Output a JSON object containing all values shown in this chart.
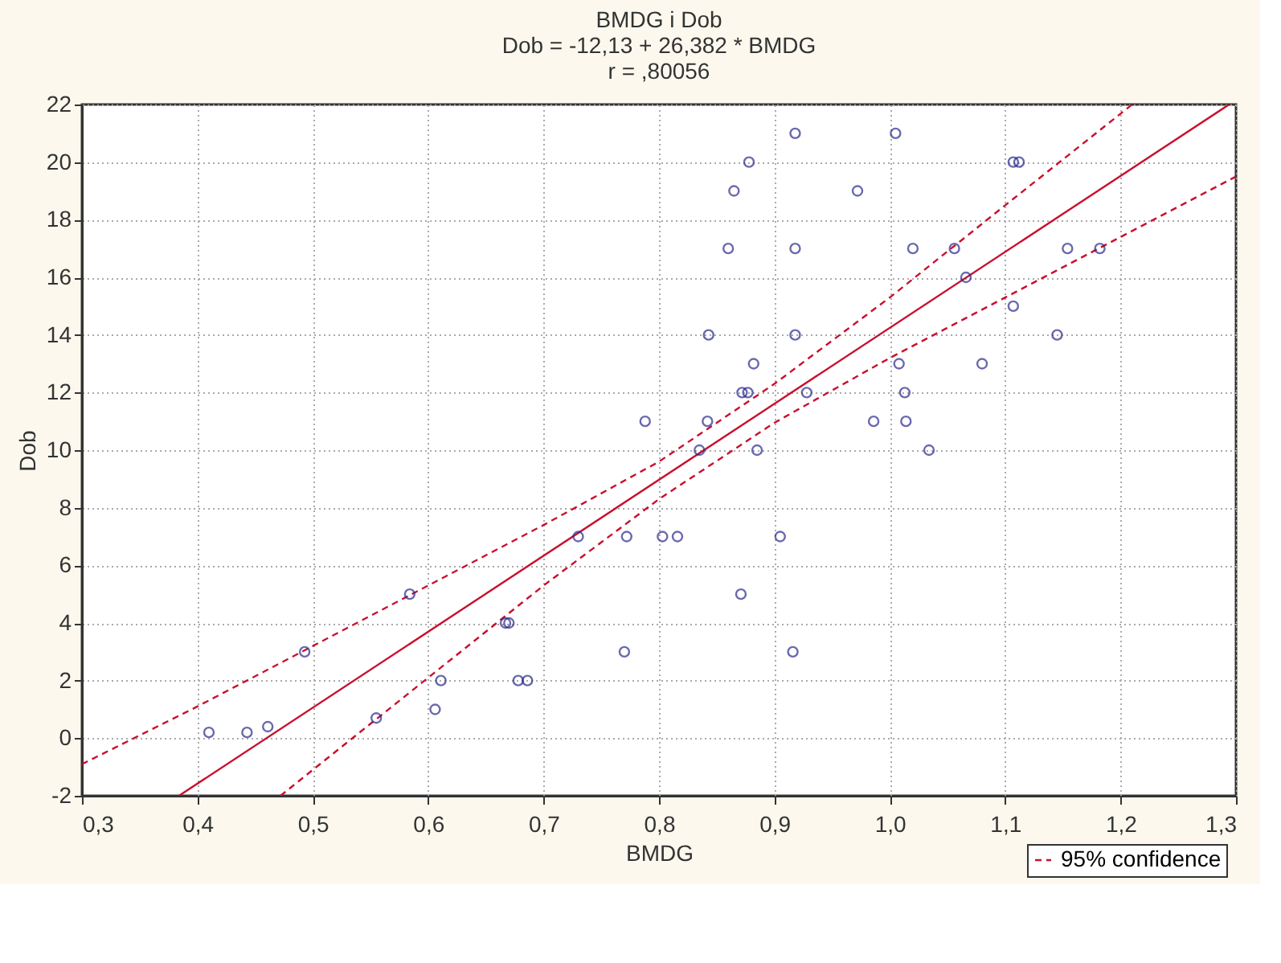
{
  "chart_data": {
    "type": "scatter",
    "title": "BMDG i Dob",
    "subtitle": "Dob = -12,13 + 26,382 * BMDG",
    "annotations": [
      "r = ,80056"
    ],
    "xlabel": "BMDG",
    "ylabel": "Dob",
    "xlim": [
      0.3,
      1.3
    ],
    "ylim": [
      -2,
      22
    ],
    "xticks": [
      {
        "value": 0.3,
        "label": "0,3"
      },
      {
        "value": 0.4,
        "label": "0,4"
      },
      {
        "value": 0.5,
        "label": "0,5"
      },
      {
        "value": 0.6,
        "label": "0,6"
      },
      {
        "value": 0.7,
        "label": "0,7"
      },
      {
        "value": 0.8,
        "label": "0,8"
      },
      {
        "value": 0.9,
        "label": "0,9"
      },
      {
        "value": 1.0,
        "label": "1,0"
      },
      {
        "value": 1.1,
        "label": "1,1"
      },
      {
        "value": 1.2,
        "label": "1,2"
      },
      {
        "value": 1.3,
        "label": "1,3"
      }
    ],
    "yticks": [
      -2,
      0,
      2,
      4,
      6,
      8,
      10,
      12,
      14,
      16,
      18,
      20,
      22
    ],
    "grid": true,
    "legend": "bottom right",
    "series": [
      {
        "type": "scatter",
        "color": "#2b2b8c",
        "marker": "circle",
        "x": [
          0.41,
          0.443,
          0.461,
          0.493,
          0.555,
          0.584,
          0.606,
          0.611,
          0.667,
          0.67,
          0.678,
          0.686,
          0.73,
          0.772,
          0.77,
          0.788,
          0.803,
          0.816,
          0.835,
          0.842,
          0.843,
          0.86,
          0.865,
          0.872,
          0.877,
          0.871,
          0.878,
          0.882,
          0.885,
          0.905,
          0.916,
          0.918,
          0.918,
          0.918,
          0.928,
          0.972,
          0.986,
          1.005,
          1.008,
          1.013,
          1.014,
          1.02,
          1.034,
          1.056,
          1.066,
          1.08,
          1.107,
          1.107,
          1.112,
          1.145,
          1.154,
          1.182
        ],
        "values": [
          0.2,
          0.2,
          0.4,
          3,
          0.7,
          5,
          1,
          2,
          4,
          4,
          2,
          2,
          7,
          7,
          3,
          11,
          7,
          7,
          10,
          11,
          14,
          17,
          19,
          12,
          12,
          5,
          20,
          13,
          10,
          7,
          3,
          21,
          17,
          14,
          12,
          19,
          11,
          21,
          13,
          12,
          11,
          17,
          10,
          17,
          16,
          13,
          15,
          20,
          20,
          14,
          17,
          17
        ]
      },
      {
        "type": "line",
        "color": "#c8102e",
        "line_style": "solid",
        "x": [
          0.384,
          1.294
        ],
        "values": [
          -2,
          22
        ]
      },
      {
        "type": "line",
        "name": "95% confidence",
        "color": "#c8102e",
        "line_style": "dashed",
        "x": [
          0.3,
          0.4,
          0.5,
          0.6,
          0.7,
          0.8,
          0.9,
          1.0,
          1.1,
          1.21
        ],
        "values": [
          -0.9,
          1.1,
          3.2,
          5.3,
          7.4,
          9.6,
          12.3,
          15.3,
          18.5,
          22.0
        ]
      },
      {
        "type": "line",
        "color": "#c8102e",
        "line_style": "dashed",
        "x": [
          0.472,
          0.5,
          0.6,
          0.7,
          0.8,
          0.9,
          1.0,
          1.1,
          1.2,
          1.3
        ],
        "values": [
          -2.0,
          -1.1,
          2.1,
          5.3,
          8.3,
          10.95,
          13.2,
          15.3,
          17.4,
          19.5
        ]
      }
    ]
  }
}
